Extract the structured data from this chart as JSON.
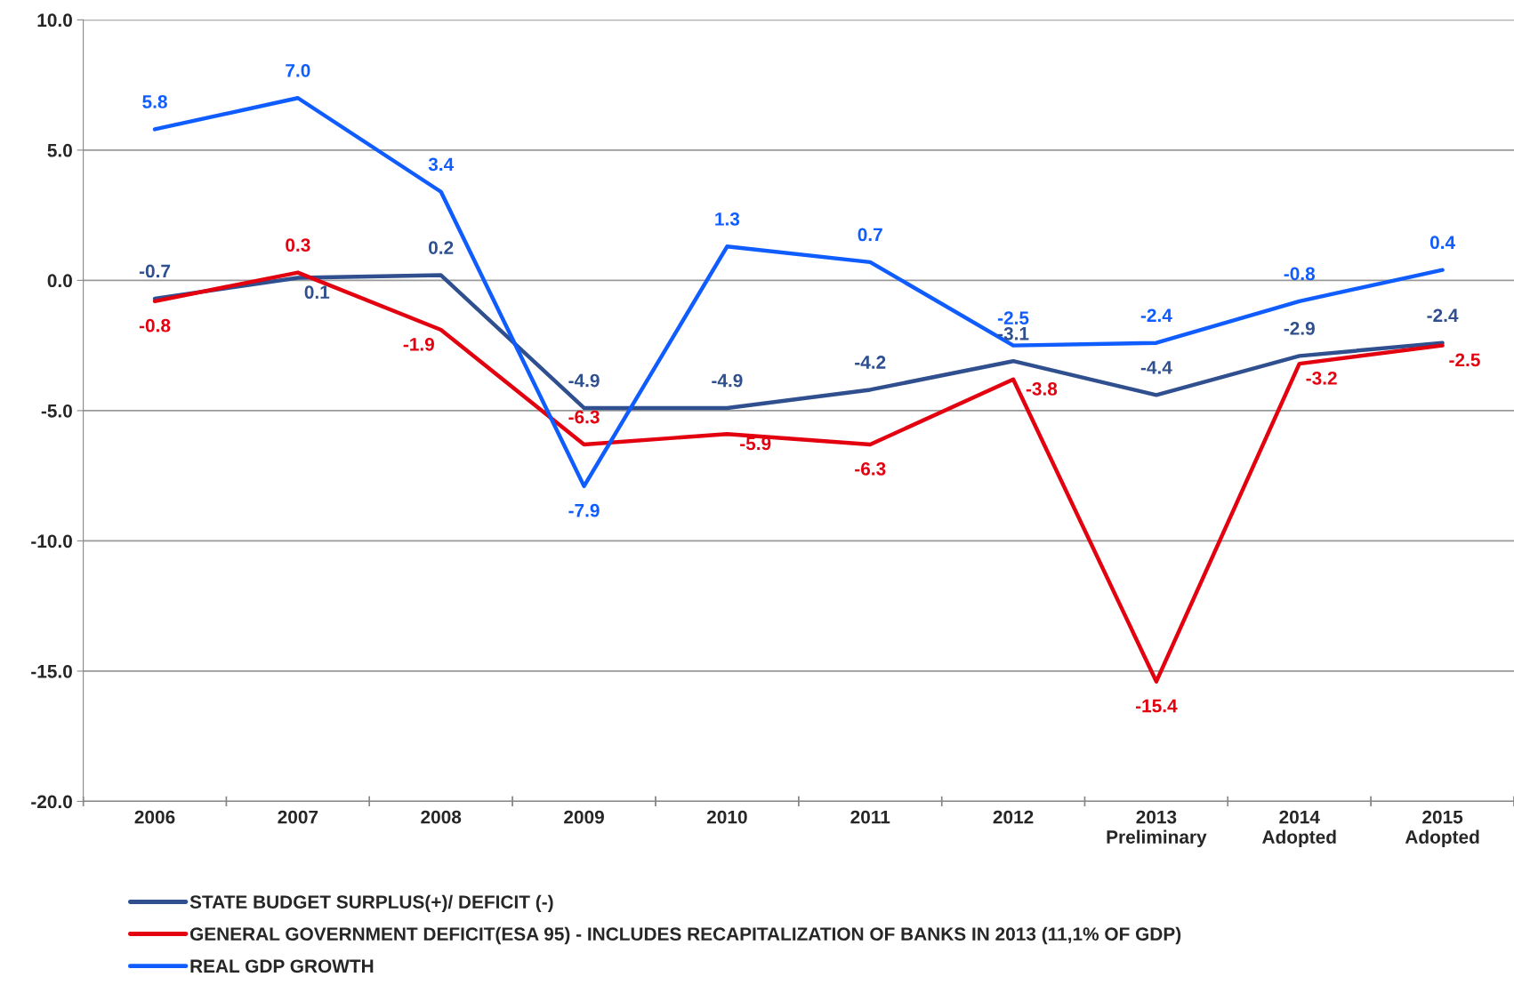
{
  "chart_data": {
    "type": "line",
    "categories": [
      "2006",
      "2007",
      "2008",
      "2009",
      "2010",
      "2011",
      "2012",
      "2013\nPreliminary",
      "2014\nAdopted",
      "2015\nAdopted"
    ],
    "series": [
      {
        "name": "STATE BUDGET SURPLUS(+)/ DEFICIT (-)",
        "color": "#2f4f8f",
        "values": [
          -0.7,
          0.1,
          0.2,
          -4.9,
          -4.9,
          -4.2,
          -3.1,
          -4.4,
          -2.9,
          -2.4
        ],
        "value_labels": [
          "-0.7",
          "0.1",
          "0.2",
          "-4.9",
          "-4.9",
          "-4.2",
          "-3.1",
          "-4.4",
          "-2.9",
          "-2.4"
        ]
      },
      {
        "name": "GENERAL GOVERNMENT DEFICIT(ESA 95) - INCLUDES RECAPITALIZATION OF BANKS IN 2013 (11,1% OF GDP)",
        "color": "#e3000f",
        "values": [
          -0.8,
          0.3,
          -1.9,
          -6.3,
          -5.9,
          -6.3,
          -3.8,
          -15.4,
          -3.2,
          -2.5
        ],
        "value_labels": [
          "-0.8",
          "0.3",
          "-1.9",
          "-6.3",
          "-5.9",
          "-6.3",
          "-3.8",
          "-15.4",
          "-3.2",
          "-2.5"
        ]
      },
      {
        "name": "REAL GDP GROWTH",
        "color": "#0f5cff",
        "values": [
          5.8,
          7.0,
          3.4,
          -7.9,
          1.3,
          0.7,
          -2.5,
          -2.4,
          -0.8,
          0.4
        ],
        "value_labels": [
          "5.8",
          "7.0",
          "3.4",
          "-7.9",
          "1.3",
          "0.7",
          "-2.5",
          "-2.4",
          "-0.8",
          "0.4"
        ]
      }
    ],
    "ylim": [
      -20,
      10
    ],
    "yticks": [
      {
        "value": -20,
        "label": "-20.0"
      },
      {
        "value": -15,
        "label": "-15.0"
      },
      {
        "value": -10,
        "label": "-10.0"
      },
      {
        "value": -5,
        "label": "-5.0"
      },
      {
        "value": 0,
        "label": "0.0"
      },
      {
        "value": 5,
        "label": "5.0"
      },
      {
        "value": 10,
        "label": "10.0"
      }
    ],
    "grid": "y",
    "legend": "bottom left",
    "marker": "none",
    "line_style": "solid"
  }
}
